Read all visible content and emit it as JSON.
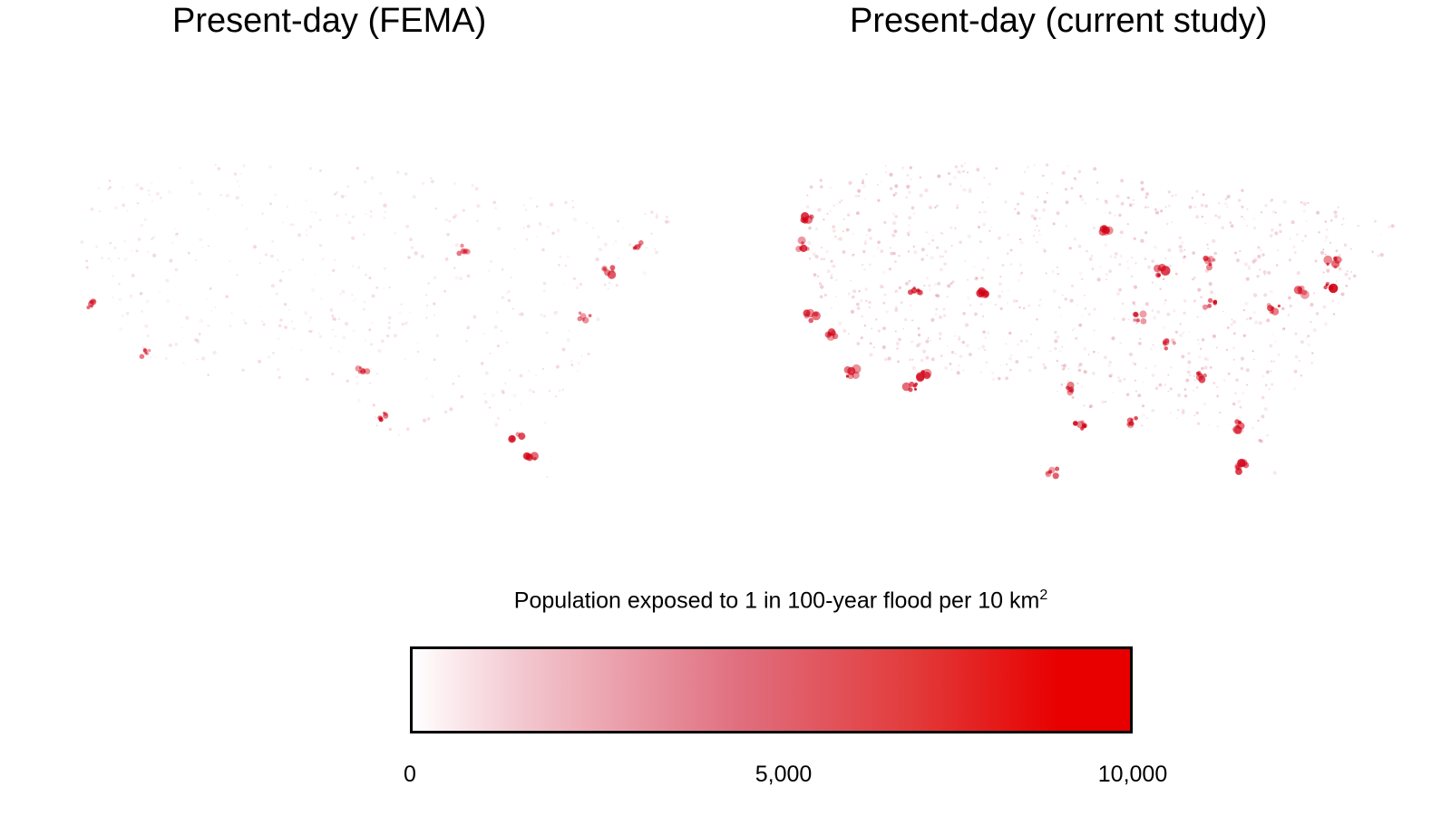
{
  "panels": [
    {
      "title": "Present-day (FEMA)",
      "intensity": "low"
    },
    {
      "title": "Present-day (current study)",
      "intensity": "high"
    }
  ],
  "legend": {
    "title": "Population exposed to 1 in 100-year flood per 10 km",
    "title_superscript": "2",
    "scale_min": 0,
    "scale_max": 10000,
    "ticks": [
      {
        "value": 0,
        "label": "0"
      },
      {
        "value": 5000,
        "label": "5,000"
      },
      {
        "value": 10000,
        "label": "10,000"
      }
    ],
    "colors": {
      "low": "#ffffff",
      "mid": "#e07080",
      "high": "#e80000"
    }
  }
}
